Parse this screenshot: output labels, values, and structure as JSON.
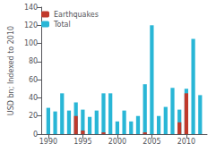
{
  "chart_data": {
    "type": "bar",
    "x": [
      1990,
      1991,
      1992,
      1993,
      1994,
      1995,
      1996,
      1997,
      1998,
      1999,
      2000,
      2001,
      2002,
      2003,
      2004,
      2005,
      2006,
      2007,
      2008,
      2009,
      2010,
      2011,
      2012
    ],
    "series": [
      {
        "name": "Total",
        "color": "#29b6d6",
        "values": [
          29,
          25,
          45,
          26,
          35,
          27,
          19,
          26,
          45,
          45,
          14,
          26,
          14,
          20,
          55,
          120,
          20,
          30,
          51,
          27,
          50,
          105,
          43
        ]
      },
      {
        "name": "Earthquakes",
        "color": "#c0392b",
        "values": [
          0,
          0,
          0,
          0,
          20,
          4,
          0,
          0,
          2,
          0,
          0,
          0,
          0,
          0,
          2,
          0,
          0,
          0,
          0,
          13,
          45,
          0,
          0
        ]
      }
    ],
    "ylabel": "USD bn; Indexed to 2010",
    "xlim": [
      1989.0,
      2013.0
    ],
    "xticks": [
      1990,
      1995,
      2000,
      2005,
      2010
    ],
    "ylim": [
      0,
      140
    ],
    "yticks": [
      0,
      20,
      40,
      60,
      80,
      100,
      120,
      140
    ],
    "grid": false,
    "legend": "upper left"
  }
}
